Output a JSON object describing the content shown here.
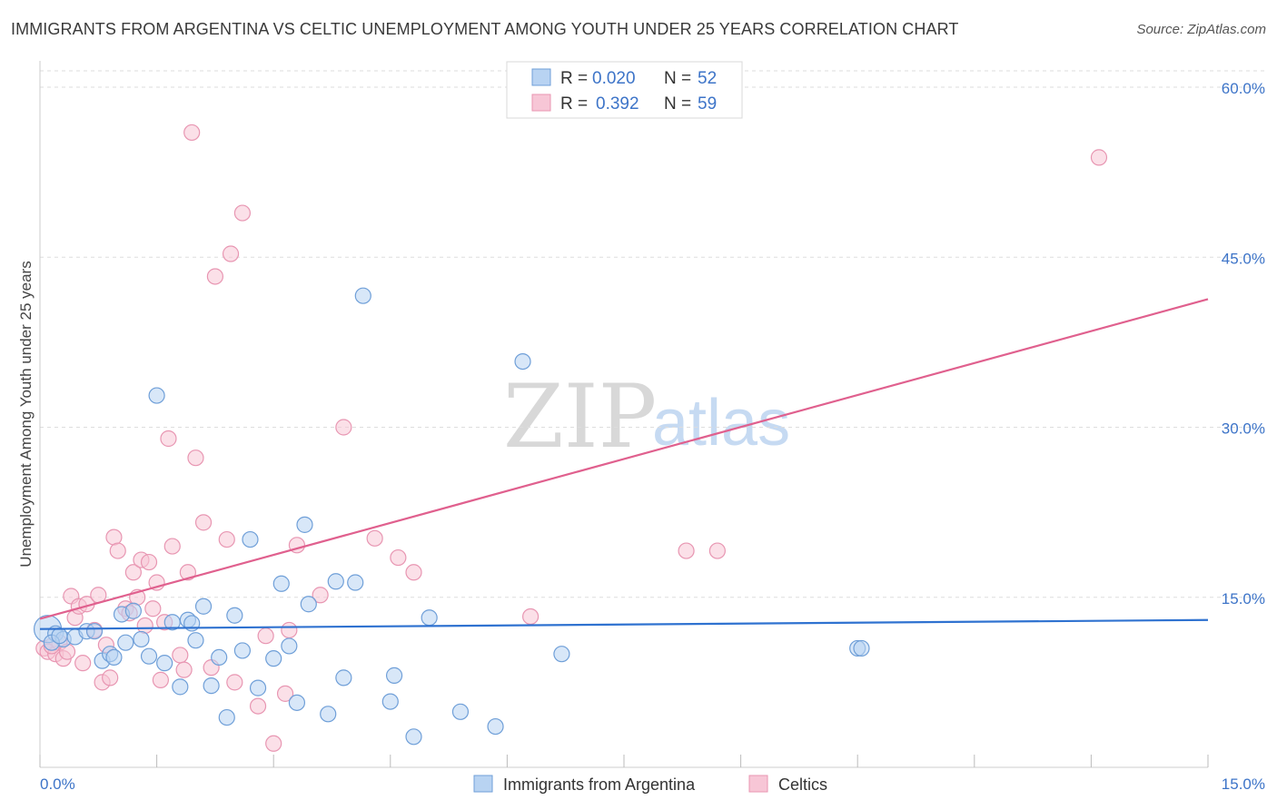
{
  "header": {
    "title": "IMMIGRANTS FROM ARGENTINA VS CELTIC UNEMPLOYMENT AMONG YOUTH UNDER 25 YEARS CORRELATION CHART",
    "source": "Source: ZipAtlas.com"
  },
  "watermark": {
    "zip": "ZIP",
    "atlas": "atlas"
  },
  "colors": {
    "blue_fill": "#b8d3f2",
    "blue_stroke": "#6f9fd8",
    "blue_line": "#2f72d0",
    "pink_fill": "#f7c6d6",
    "pink_stroke": "#e896b2",
    "pink_line": "#e0608e",
    "axis_label": "#3d74c8",
    "grid": "#dddddd"
  },
  "legend_top": {
    "rows": [
      {
        "r_label": "R = ",
        "r_value": "0.020",
        "n_label": "N = ",
        "n_value": "52",
        "series": "blue"
      },
      {
        "r_label": "R = ",
        "r_value": "0.392",
        "n_label": "N = ",
        "n_value": "59",
        "series": "pink"
      }
    ]
  },
  "legend_bottom": [
    {
      "label": "Immigrants from Argentina",
      "series": "blue"
    },
    {
      "label": "Celtics",
      "series": "pink"
    }
  ],
  "chart_data": {
    "type": "scatter",
    "title": "IMMIGRANTS FROM ARGENTINA VS CELTIC UNEMPLOYMENT AMONG YOUTH UNDER 25 YEARS CORRELATION CHART",
    "xlabel": "",
    "ylabel": "Unemployment Among Youth under 25 years",
    "xlim": [
      0,
      15
    ],
    "ylim": [
      0,
      60
    ],
    "x_tick_labels": [
      "0.0%",
      "15.0%"
    ],
    "y_ticks": [
      15,
      30,
      45,
      60
    ],
    "y_tick_labels": [
      "15.0%",
      "30.0%",
      "45.0%",
      "60.0%"
    ],
    "grid": true,
    "series": [
      {
        "name": "Immigrants from Argentina",
        "color": "blue",
        "trend": {
          "x": [
            0,
            15
          ],
          "y": [
            12.2,
            13.0
          ]
        },
        "points": [
          {
            "x": 0.1,
            "y": 12.2,
            "big": true
          },
          {
            "x": 0.2,
            "y": 11.8
          },
          {
            "x": 0.3,
            "y": 11.3
          },
          {
            "x": 0.45,
            "y": 11.5
          },
          {
            "x": 0.6,
            "y": 12.0
          },
          {
            "x": 0.7,
            "y": 12.0
          },
          {
            "x": 0.8,
            "y": 9.4
          },
          {
            "x": 0.9,
            "y": 10.0
          },
          {
            "x": 0.95,
            "y": 9.7
          },
          {
            "x": 1.05,
            "y": 13.5
          },
          {
            "x": 1.1,
            "y": 11.0
          },
          {
            "x": 1.2,
            "y": 13.8
          },
          {
            "x": 1.3,
            "y": 11.3
          },
          {
            "x": 1.4,
            "y": 9.8
          },
          {
            "x": 1.5,
            "y": 32.8
          },
          {
            "x": 1.6,
            "y": 9.2
          },
          {
            "x": 1.7,
            "y": 12.8
          },
          {
            "x": 1.8,
            "y": 7.1
          },
          {
            "x": 1.9,
            "y": 13.0
          },
          {
            "x": 1.95,
            "y": 12.7
          },
          {
            "x": 2.0,
            "y": 11.2
          },
          {
            "x": 2.1,
            "y": 14.2
          },
          {
            "x": 2.2,
            "y": 7.2
          },
          {
            "x": 2.3,
            "y": 9.7
          },
          {
            "x": 2.4,
            "y": 4.4
          },
          {
            "x": 2.5,
            "y": 13.4
          },
          {
            "x": 2.6,
            "y": 10.3
          },
          {
            "x": 2.7,
            "y": 20.1
          },
          {
            "x": 2.8,
            "y": 7.0
          },
          {
            "x": 3.0,
            "y": 9.6
          },
          {
            "x": 3.1,
            "y": 16.2
          },
          {
            "x": 3.2,
            "y": 10.7
          },
          {
            "x": 3.3,
            "y": 5.7
          },
          {
            "x": 3.4,
            "y": 21.4
          },
          {
            "x": 3.45,
            "y": 14.4
          },
          {
            "x": 3.7,
            "y": 4.7
          },
          {
            "x": 3.8,
            "y": 16.4
          },
          {
            "x": 3.9,
            "y": 7.9
          },
          {
            "x": 4.05,
            "y": 16.3
          },
          {
            "x": 4.15,
            "y": 41.6
          },
          {
            "x": 4.5,
            "y": 5.8
          },
          {
            "x": 4.55,
            "y": 8.1
          },
          {
            "x": 4.8,
            "y": 2.7
          },
          {
            "x": 5.0,
            "y": 13.2
          },
          {
            "x": 5.4,
            "y": 4.9
          },
          {
            "x": 5.85,
            "y": 3.6
          },
          {
            "x": 6.2,
            "y": 35.8
          },
          {
            "x": 6.7,
            "y": 10.0
          },
          {
            "x": 10.5,
            "y": 10.5
          },
          {
            "x": 10.55,
            "y": 10.5
          },
          {
            "x": 0.15,
            "y": 11.0
          },
          {
            "x": 0.25,
            "y": 11.6
          }
        ]
      },
      {
        "name": "Celtics",
        "color": "pink",
        "trend": {
          "x": [
            0,
            15
          ],
          "y": [
            13.1,
            41.3
          ]
        },
        "points": [
          {
            "x": 0.05,
            "y": 10.5
          },
          {
            "x": 0.1,
            "y": 10.2
          },
          {
            "x": 0.2,
            "y": 10.0
          },
          {
            "x": 0.25,
            "y": 11.0
          },
          {
            "x": 0.3,
            "y": 9.6
          },
          {
            "x": 0.35,
            "y": 10.2
          },
          {
            "x": 0.4,
            "y": 15.1
          },
          {
            "x": 0.45,
            "y": 13.2
          },
          {
            "x": 0.5,
            "y": 14.2
          },
          {
            "x": 0.55,
            "y": 9.2
          },
          {
            "x": 0.6,
            "y": 14.4
          },
          {
            "x": 0.7,
            "y": 12.1
          },
          {
            "x": 0.75,
            "y": 15.2
          },
          {
            "x": 0.8,
            "y": 7.5
          },
          {
            "x": 0.85,
            "y": 10.8
          },
          {
            "x": 0.9,
            "y": 7.9
          },
          {
            "x": 0.95,
            "y": 20.3
          },
          {
            "x": 1.0,
            "y": 19.1
          },
          {
            "x": 1.1,
            "y": 14.0
          },
          {
            "x": 1.15,
            "y": 13.6
          },
          {
            "x": 1.2,
            "y": 17.2
          },
          {
            "x": 1.25,
            "y": 15.0
          },
          {
            "x": 1.3,
            "y": 18.3
          },
          {
            "x": 1.35,
            "y": 12.5
          },
          {
            "x": 1.4,
            "y": 18.1
          },
          {
            "x": 1.45,
            "y": 14.0
          },
          {
            "x": 1.5,
            "y": 16.3
          },
          {
            "x": 1.55,
            "y": 7.7
          },
          {
            "x": 1.6,
            "y": 12.8
          },
          {
            "x": 1.65,
            "y": 29.0
          },
          {
            "x": 1.7,
            "y": 19.5
          },
          {
            "x": 1.8,
            "y": 9.9
          },
          {
            "x": 1.85,
            "y": 8.6
          },
          {
            "x": 1.9,
            "y": 17.2
          },
          {
            "x": 1.95,
            "y": 56.0
          },
          {
            "x": 2.0,
            "y": 27.3
          },
          {
            "x": 2.1,
            "y": 21.6
          },
          {
            "x": 2.2,
            "y": 8.8
          },
          {
            "x": 2.25,
            "y": 43.3
          },
          {
            "x": 2.4,
            "y": 20.1
          },
          {
            "x": 2.45,
            "y": 45.3
          },
          {
            "x": 2.5,
            "y": 7.5
          },
          {
            "x": 2.6,
            "y": 48.9
          },
          {
            "x": 2.8,
            "y": 5.4
          },
          {
            "x": 2.9,
            "y": 11.6
          },
          {
            "x": 3.0,
            "y": 2.1
          },
          {
            "x": 3.15,
            "y": 6.5
          },
          {
            "x": 3.2,
            "y": 12.1
          },
          {
            "x": 3.3,
            "y": 19.6
          },
          {
            "x": 3.6,
            "y": 15.2
          },
          {
            "x": 3.9,
            "y": 30.0
          },
          {
            "x": 4.3,
            "y": 20.2
          },
          {
            "x": 4.6,
            "y": 18.5
          },
          {
            "x": 4.8,
            "y": 17.2
          },
          {
            "x": 6.3,
            "y": 13.3
          },
          {
            "x": 8.3,
            "y": 19.1
          },
          {
            "x": 8.7,
            "y": 19.1
          },
          {
            "x": 13.6,
            "y": 53.8
          },
          {
            "x": 0.15,
            "y": 10.7
          }
        ]
      }
    ]
  }
}
